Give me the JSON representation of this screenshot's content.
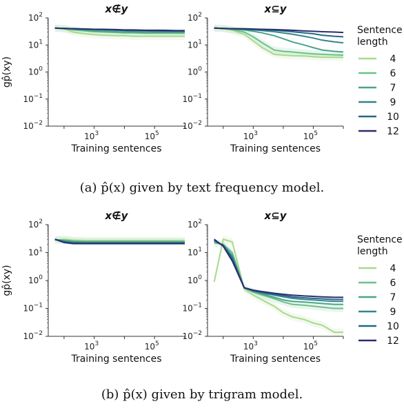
{
  "chart_data": [
    {
      "type": "line",
      "figure": "a",
      "title": "x∉y",
      "xlabel": "Training sentences",
      "ylabel": "gp̂(xy)",
      "xscale": "log",
      "yscale": "log",
      "xlim": [
        30,
        1000000
      ],
      "ylim": [
        0.01,
        100
      ],
      "x": [
        50,
        100,
        200,
        500,
        1000,
        2000,
        5000,
        10000,
        20000,
        50000,
        100000,
        200000,
        500000,
        1000000
      ],
      "series": [
        {
          "name": "4",
          "values": [
            42,
            40,
            30,
            26,
            24,
            23,
            22,
            22,
            21,
            21,
            21,
            21,
            21,
            21
          ]
        },
        {
          "name": "6",
          "values": [
            42,
            40,
            36,
            33,
            31,
            30,
            29,
            28,
            28,
            27,
            27,
            27,
            27,
            27
          ]
        },
        {
          "name": "7",
          "values": [
            42,
            40,
            38,
            35,
            33,
            32,
            31,
            30,
            30,
            29,
            29,
            29,
            29,
            29
          ]
        },
        {
          "name": "9",
          "values": [
            42,
            41,
            40,
            38,
            37,
            36,
            35,
            34,
            33,
            33,
            32,
            32,
            32,
            32
          ]
        },
        {
          "name": "10",
          "values": [
            42,
            41,
            40,
            39,
            38,
            37,
            36,
            35,
            35,
            34,
            34,
            33,
            33,
            33
          ]
        },
        {
          "name": "12",
          "values": [
            42,
            41,
            40,
            39,
            38,
            38,
            37,
            36,
            36,
            35,
            35,
            35,
            34,
            34
          ]
        }
      ]
    },
    {
      "type": "line",
      "figure": "a",
      "title": "x⊆y",
      "xlabel": "Training sentences",
      "xscale": "log",
      "yscale": "log",
      "xlim": [
        30,
        1000000
      ],
      "ylim": [
        0.01,
        100
      ],
      "x": [
        50,
        100,
        200,
        500,
        1000,
        2000,
        5000,
        10000,
        20000,
        50000,
        100000,
        200000,
        500000,
        1000000
      ],
      "series": [
        {
          "name": "4",
          "values": [
            42,
            40,
            35,
            25,
            14,
            8,
            4.5,
            4.2,
            4.0,
            3.9,
            3.7,
            3.5,
            3.5,
            3.5
          ]
        },
        {
          "name": "6",
          "values": [
            42,
            41,
            37,
            30,
            20,
            12,
            6.5,
            5.8,
            5.5,
            5.0,
            4.7,
            4.5,
            4.3,
            4.2
          ]
        },
        {
          "name": "7",
          "values": [
            42,
            41,
            39,
            36,
            32,
            28,
            22,
            17,
            13,
            10,
            8,
            6.5,
            5.8,
            5.5
          ]
        },
        {
          "name": "9",
          "values": [
            42,
            41,
            40,
            38,
            36,
            34,
            31,
            28,
            25,
            21,
            18,
            15,
            13,
            12
          ]
        },
        {
          "name": "10",
          "values": [
            42,
            41,
            40,
            39,
            38,
            37,
            35,
            33,
            31,
            28,
            26,
            23,
            21,
            20
          ]
        },
        {
          "name": "12",
          "values": [
            42,
            41,
            40,
            40,
            39,
            38,
            37,
            36,
            35,
            33,
            32,
            31,
            30,
            29
          ]
        }
      ]
    },
    {
      "type": "line",
      "figure": "b",
      "title": "x∉y",
      "xlabel": "Training sentences",
      "ylabel": "gp̂(xy)",
      "xscale": "log",
      "yscale": "log",
      "xlim": [
        30,
        1000000
      ],
      "ylim": [
        0.01,
        100
      ],
      "x": [
        50,
        100,
        200,
        500,
        1000,
        2000,
        5000,
        10000,
        20000,
        50000,
        100000,
        200000,
        500000,
        1000000
      ],
      "series": [
        {
          "name": "4",
          "values": [
            28,
            30,
            28,
            27,
            27,
            27,
            27,
            27,
            27,
            27,
            27,
            27,
            27,
            27
          ]
        },
        {
          "name": "6",
          "values": [
            29,
            28,
            26,
            25,
            25,
            25,
            25,
            25,
            25,
            25,
            25,
            25,
            25,
            25
          ]
        },
        {
          "name": "7",
          "values": [
            29,
            27,
            25,
            24,
            24,
            24,
            24,
            24,
            24,
            24,
            24,
            24,
            24,
            24
          ]
        },
        {
          "name": "9",
          "values": [
            30,
            25,
            23,
            22,
            22,
            22,
            22,
            22,
            22,
            22,
            22,
            22,
            22,
            22
          ]
        },
        {
          "name": "10",
          "values": [
            30,
            24,
            22,
            22,
            22,
            22,
            22,
            22,
            22,
            22,
            22,
            22,
            22,
            22
          ]
        },
        {
          "name": "12",
          "values": [
            30,
            23,
            21,
            21,
            21,
            21,
            21,
            21,
            21,
            21,
            21,
            21,
            21,
            21
          ]
        }
      ]
    },
    {
      "type": "line",
      "figure": "b",
      "title": "x⊆y",
      "xlabel": "Training sentences",
      "xscale": "log",
      "yscale": "log",
      "xlim": [
        30,
        1000000
      ],
      "ylim": [
        0.01,
        100
      ],
      "x": [
        50,
        100,
        200,
        500,
        1000,
        2000,
        5000,
        10000,
        20000,
        50000,
        100000,
        200000,
        500000,
        1000000
      ],
      "series": [
        {
          "name": "4",
          "values": [
            0.9,
            30,
            24,
            0.5,
            0.3,
            0.2,
            0.12,
            0.07,
            0.05,
            0.04,
            0.03,
            0.025,
            0.014,
            0.014
          ]
        },
        {
          "name": "6",
          "values": [
            22,
            20,
            10,
            0.55,
            0.38,
            0.3,
            0.22,
            0.17,
            0.14,
            0.13,
            0.12,
            0.11,
            0.1,
            0.1
          ]
        },
        {
          "name": "7",
          "values": [
            25,
            19,
            8,
            0.55,
            0.4,
            0.33,
            0.25,
            0.2,
            0.18,
            0.17,
            0.16,
            0.15,
            0.14,
            0.14
          ]
        },
        {
          "name": "9",
          "values": [
            26,
            18,
            7,
            0.55,
            0.42,
            0.36,
            0.3,
            0.26,
            0.23,
            0.21,
            0.2,
            0.19,
            0.18,
            0.18
          ]
        },
        {
          "name": "10",
          "values": [
            28,
            18,
            6,
            0.55,
            0.44,
            0.38,
            0.32,
            0.29,
            0.26,
            0.24,
            0.23,
            0.22,
            0.21,
            0.21
          ]
        },
        {
          "name": "12",
          "values": [
            30,
            17,
            5,
            0.55,
            0.45,
            0.4,
            0.35,
            0.32,
            0.3,
            0.28,
            0.27,
            0.26,
            0.25,
            0.25
          ]
        }
      ]
    }
  ],
  "colors": {
    "4": "#a8d98a",
    "6": "#6cc08b",
    "7": "#4aa38a",
    "9": "#33868a",
    "10": "#226788",
    "12": "#2a2d6e"
  },
  "legend": {
    "title_line1": "Sentence",
    "title_line2": "length",
    "entries": [
      "4",
      "6",
      "7",
      "9",
      "10",
      "12"
    ]
  },
  "captions": {
    "a": "(a) p̂(x) given by text frequency model.",
    "b": "(b) p̂(x) given by trigram model."
  }
}
